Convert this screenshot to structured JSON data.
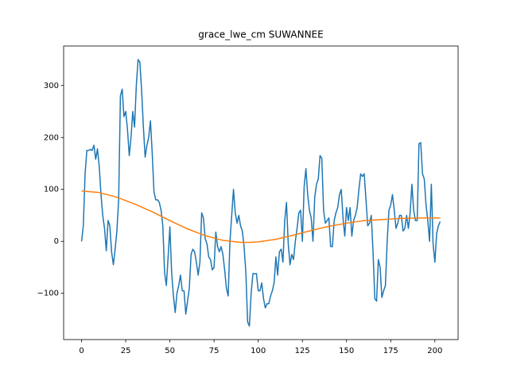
{
  "chart_data": {
    "type": "line",
    "title": "grace_lwe_cm SUWANNEE",
    "xlim": [
      -10.15,
      213.15
    ],
    "xticks": [
      0,
      25,
      50,
      75,
      100,
      125,
      150,
      175,
      200
    ],
    "ylim": [
      -189,
      376
    ],
    "yticks": [
      {
        "value": -100,
        "label": "−100"
      },
      0,
      100,
      200,
      300
    ],
    "series": [
      {
        "color": "#1f77b4",
        "x": [
          0,
          1,
          2,
          3,
          4,
          5,
          6,
          7,
          8,
          9,
          10,
          11,
          12,
          13,
          14,
          15,
          16,
          17,
          18,
          19,
          20,
          21,
          22,
          23,
          24,
          25,
          26,
          27,
          28,
          29,
          30,
          31,
          32,
          33,
          34,
          35,
          36,
          37,
          38,
          39,
          40,
          41,
          42,
          43,
          44,
          45,
          46,
          47,
          48,
          49,
          50,
          51,
          52,
          53,
          54,
          55,
          56,
          57,
          58,
          59,
          60,
          61,
          62,
          63,
          64,
          65,
          66,
          67,
          68,
          69,
          70,
          71,
          72,
          73,
          74,
          75,
          76,
          77,
          78,
          79,
          80,
          81,
          82,
          83,
          84,
          85,
          86,
          87,
          88,
          89,
          90,
          91,
          92,
          93,
          94,
          95,
          96,
          97,
          98,
          99,
          100,
          101,
          102,
          103,
          104,
          105,
          106,
          107,
          108,
          109,
          110,
          111,
          112,
          113,
          114,
          115,
          116,
          117,
          118,
          119,
          120,
          121,
          122,
          123,
          124,
          125,
          126,
          127,
          128,
          129,
          130,
          131,
          132,
          133,
          134,
          135,
          136,
          137,
          138,
          139,
          140,
          141,
          142,
          143,
          144,
          145,
          146,
          147,
          148,
          149,
          150,
          151,
          152,
          153,
          154,
          155,
          156,
          157,
          158,
          159,
          160,
          161,
          162,
          163,
          164,
          165,
          166,
          167,
          168,
          169,
          170,
          171,
          172,
          173,
          174,
          175,
          176,
          177,
          178,
          179,
          180,
          181,
          182,
          183,
          184,
          185,
          186,
          187,
          188,
          189,
          190,
          191,
          192,
          193,
          194,
          195,
          196,
          197,
          198,
          199,
          200,
          201,
          202,
          203
        ],
        "values": [
          0,
          30,
          130,
          175,
          175,
          177,
          175,
          185,
          158,
          178,
          145,
          90,
          50,
          25,
          -18,
          40,
          30,
          -20,
          -45,
          -15,
          20,
          80,
          280,
          293,
          240,
          250,
          215,
          165,
          200,
          250,
          220,
          300,
          350,
          345,
          290,
          220,
          162,
          185,
          200,
          232,
          170,
          95,
          80,
          80,
          75,
          60,
          30,
          -60,
          -85,
          -30,
          28,
          -60,
          -105,
          -137,
          -100,
          -85,
          -65,
          -95,
          -95,
          -140,
          -115,
          -90,
          -25,
          -15,
          -20,
          -40,
          -65,
          -40,
          55,
          45,
          5,
          -5,
          -30,
          -35,
          -55,
          -50,
          18,
          -10,
          -20,
          -10,
          -25,
          -55,
          -90,
          -105,
          0,
          50,
          100,
          55,
          35,
          50,
          30,
          20,
          -10,
          -60,
          -155,
          -163,
          -100,
          -62,
          -62,
          -62,
          -95,
          -95,
          -80,
          -110,
          -128,
          -120,
          -120,
          -105,
          -95,
          -80,
          -30,
          -65,
          -20,
          -15,
          -40,
          40,
          75,
          -5,
          -45,
          -25,
          -35,
          0,
          25,
          55,
          60,
          0,
          105,
          140,
          90,
          60,
          45,
          0,
          85,
          110,
          120,
          165,
          160,
          60,
          35,
          40,
          45,
          -10,
          -10,
          40,
          55,
          65,
          90,
          100,
          45,
          10,
          65,
          40,
          65,
          10,
          40,
          50,
          65,
          100,
          130,
          125,
          130,
          80,
          30,
          35,
          50,
          -20,
          -110,
          -115,
          -35,
          -50,
          -108,
          -95,
          -85,
          0,
          60,
          70,
          90,
          60,
          25,
          35,
          50,
          50,
          20,
          25,
          50,
          25,
          55,
          110,
          60,
          40,
          40,
          188,
          190,
          130,
          120,
          70,
          40,
          0,
          110,
          -5,
          -40,
          15,
          30,
          38
        ]
      },
      {
        "color": "#ff7f0e",
        "x": [
          0,
          10,
          20,
          30,
          40,
          50,
          60,
          70,
          80,
          90,
          95,
          100,
          110,
          120,
          130,
          140,
          150,
          160,
          170,
          180,
          190,
          200,
          203
        ],
        "values": [
          97,
          94,
          85,
          72,
          57,
          40,
          24,
          11,
          2,
          -2,
          -2,
          -1,
          4,
          12,
          21,
          29,
          35,
          40,
          42,
          44,
          45,
          45,
          45
        ]
      }
    ]
  }
}
